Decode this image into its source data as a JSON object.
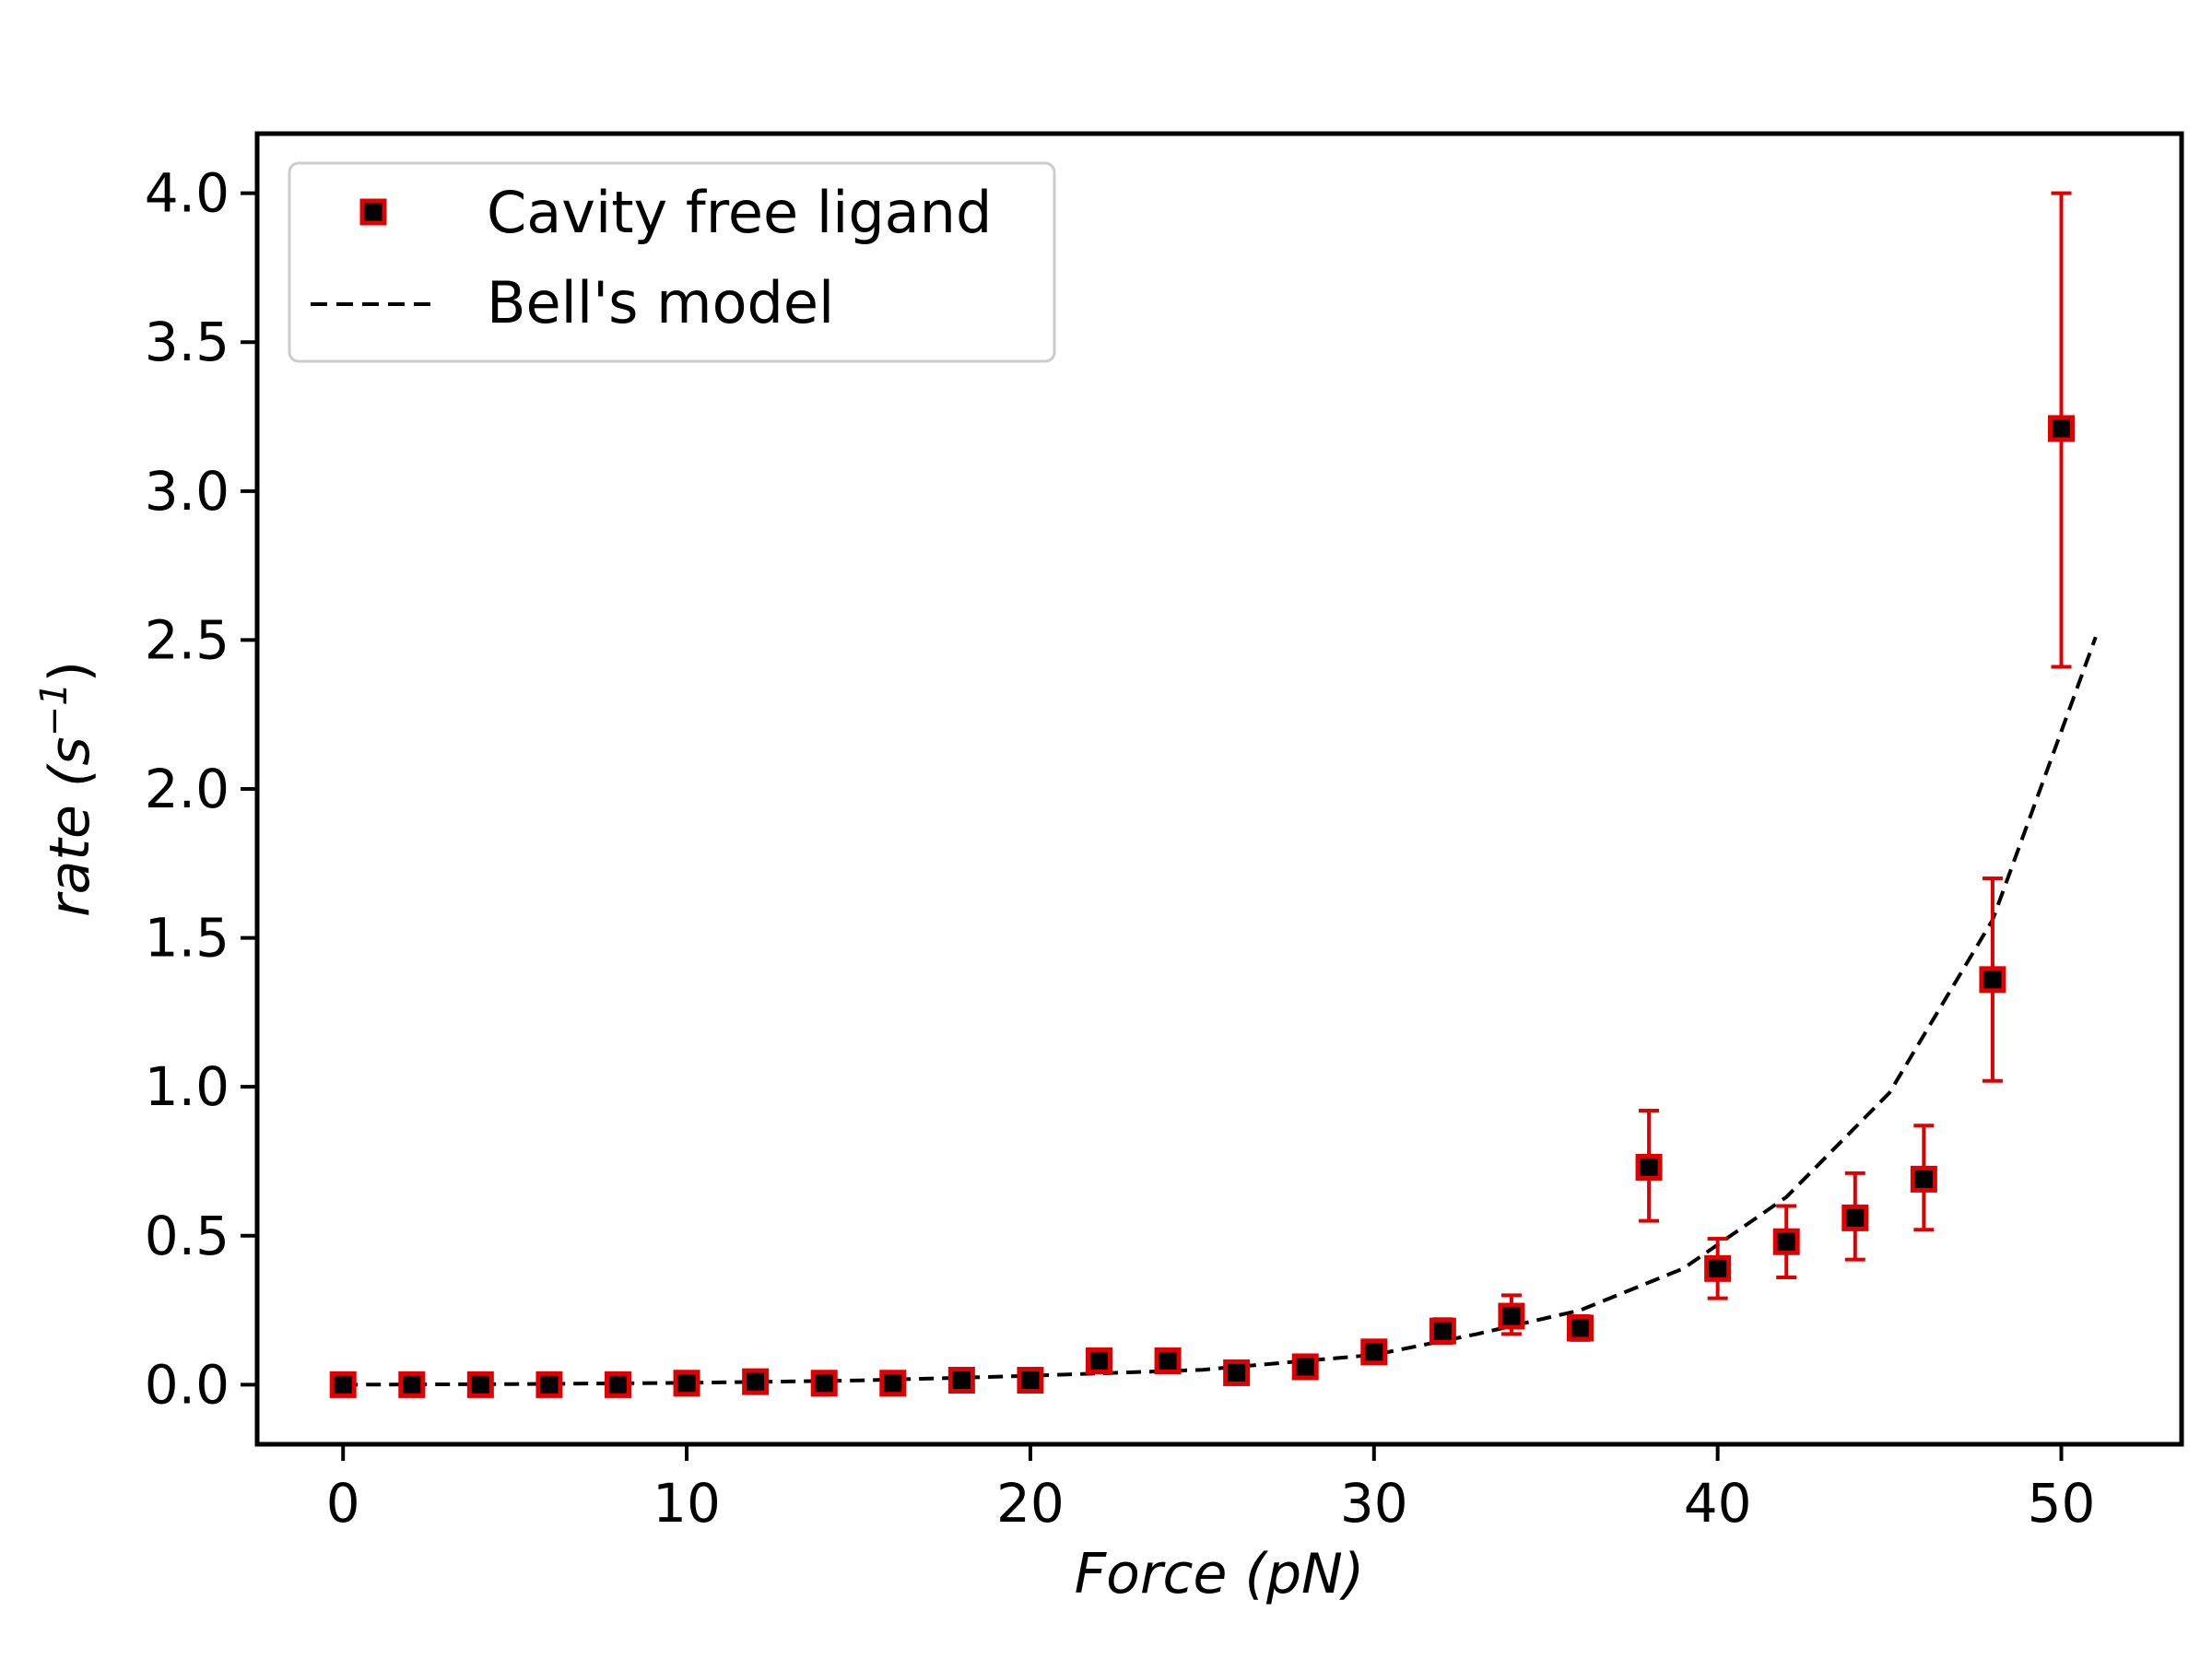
{
  "chart_data": {
    "type": "scatter",
    "xlabel": "Force (pN)",
    "ylabel_main": "rate (s",
    "ylabel_sup": "−1",
    "ylabel_close": ")",
    "xlim": [
      -2.5,
      53.5
    ],
    "ylim": [
      -0.2,
      4.2
    ],
    "xticks": [
      0,
      10,
      20,
      30,
      40,
      50
    ],
    "xtick_labels": [
      "0",
      "10",
      "20",
      "30",
      "40",
      "50"
    ],
    "yticks": [
      0.0,
      0.5,
      1.0,
      1.5,
      2.0,
      2.5,
      3.0,
      3.5,
      4.0
    ],
    "ytick_labels": [
      "0.0",
      "0.5",
      "1.0",
      "1.5",
      "2.0",
      "2.5",
      "3.0",
      "3.5",
      "4.0"
    ],
    "grid": false,
    "legend_position": "top-left",
    "series": [
      {
        "name": "Cavity free ligand",
        "kind": "scatter_errorbar",
        "marker": "square",
        "marker_face": "#000000",
        "marker_edge": "#e00000",
        "error_color": "#e00000",
        "x": [
          0,
          2,
          4,
          6,
          8,
          10,
          12,
          14,
          16,
          18,
          20,
          22,
          24,
          26,
          28,
          30,
          32,
          34,
          36,
          38,
          40,
          42,
          44,
          46,
          48,
          50
        ],
        "y": [
          0.0,
          0.0,
          0.0,
          0.0,
          0.0,
          0.005,
          0.01,
          0.005,
          0.005,
          0.015,
          0.015,
          0.08,
          0.08,
          0.04,
          0.06,
          0.11,
          0.18,
          0.23,
          0.19,
          0.73,
          0.39,
          0.48,
          0.56,
          0.69,
          1.36,
          3.21
        ],
        "yerr_low": [
          0.0,
          0.0,
          0.0,
          0.0,
          0.0,
          0.0,
          0.0,
          0.0,
          0.0,
          0.0,
          0.0,
          0.02,
          0.02,
          0.01,
          0.02,
          0.03,
          0.04,
          0.06,
          0.04,
          0.18,
          0.1,
          0.12,
          0.14,
          0.17,
          0.34,
          0.8
        ],
        "yerr_high": [
          0.0,
          0.0,
          0.0,
          0.0,
          0.0,
          0.0,
          0.0,
          0.0,
          0.0,
          0.0,
          0.0,
          0.02,
          0.02,
          0.01,
          0.02,
          0.03,
          0.04,
          0.07,
          0.04,
          0.19,
          0.1,
          0.12,
          0.15,
          0.18,
          0.34,
          0.79
        ]
      },
      {
        "name": "Bell's model",
        "kind": "line",
        "style": "dashed",
        "color": "#000000",
        "x": [
          0,
          5,
          10,
          15,
          20,
          25,
          30,
          33,
          36,
          39,
          42,
          45,
          48,
          51
        ],
        "y": [
          0.0,
          0.002,
          0.006,
          0.014,
          0.03,
          0.05,
          0.1,
          0.17,
          0.25,
          0.39,
          0.63,
          0.98,
          1.56,
          2.51
        ]
      }
    ]
  }
}
